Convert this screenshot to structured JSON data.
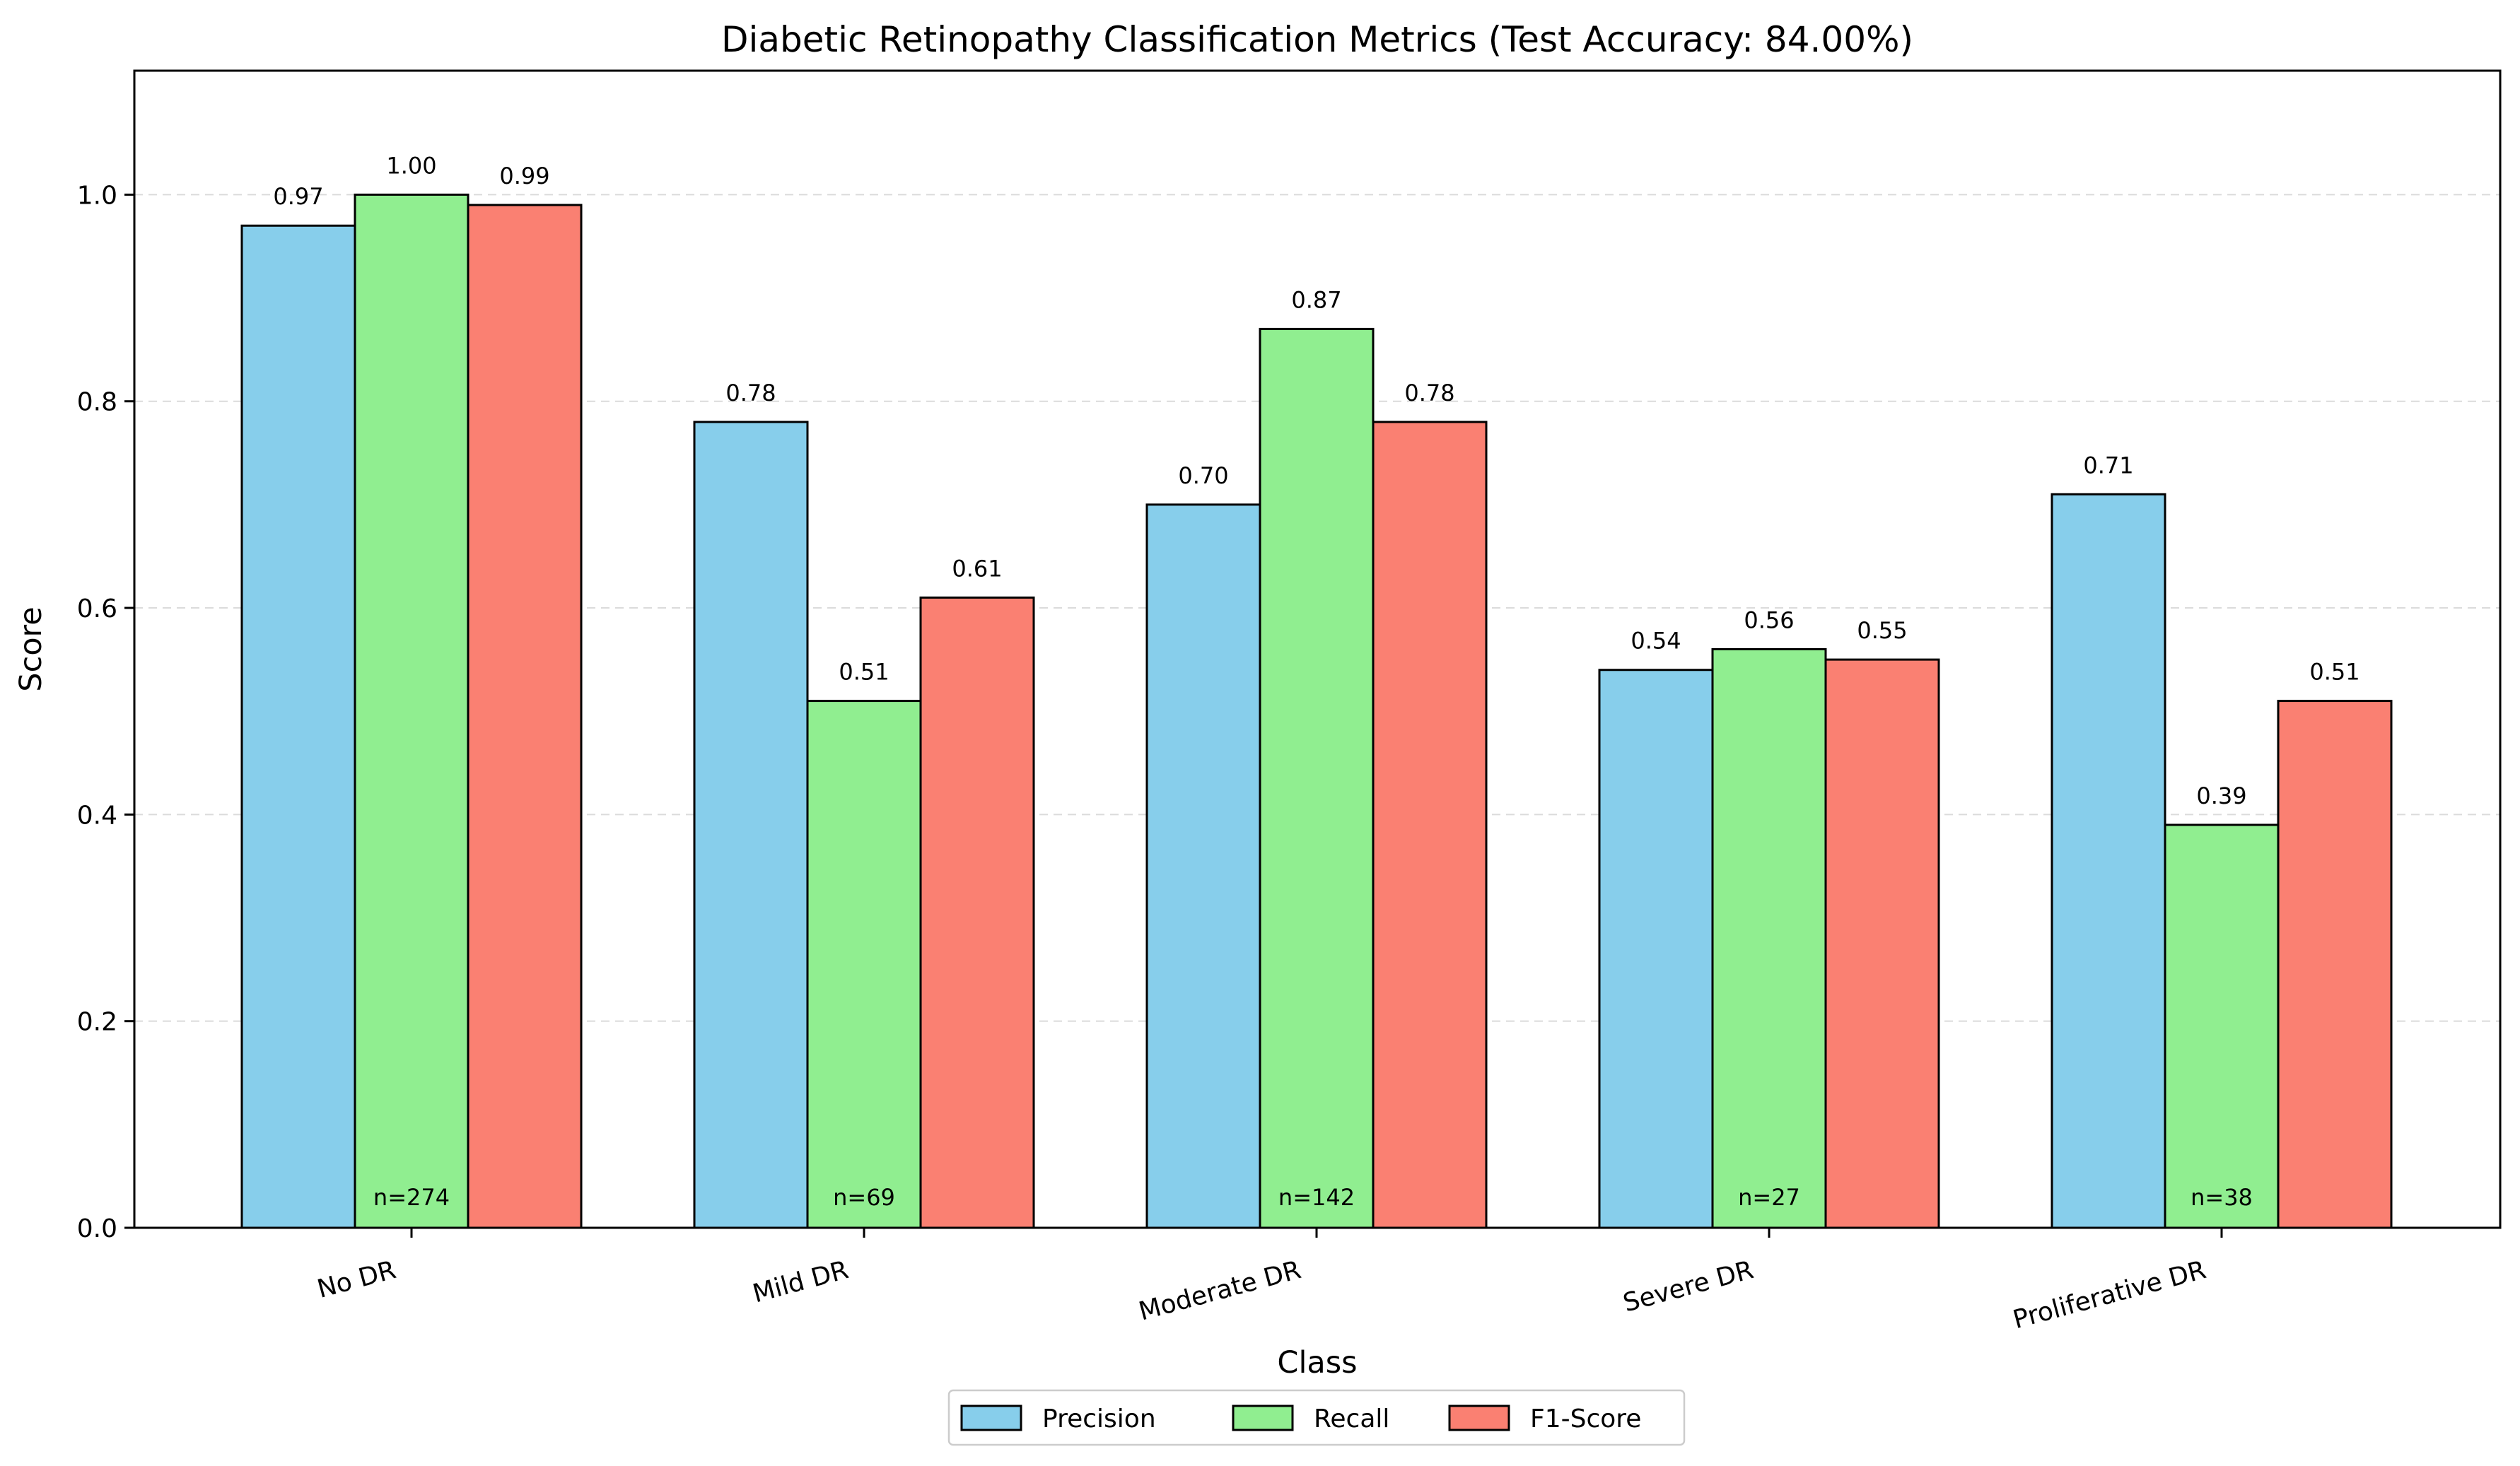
{
  "chart_data": {
    "type": "bar",
    "title": "Diabetic Retinopathy Classification Metrics (Test Accuracy: 84.00%)",
    "xlabel": "Class",
    "ylabel": "Score",
    "ylim": [
      0,
      1.12
    ],
    "yticks": [
      "0.0",
      "0.2",
      "0.4",
      "0.6",
      "0.8",
      "1.0"
    ],
    "grid": "y-dashed",
    "legend_position": "bottom-center",
    "categories": [
      "No DR",
      "Mild DR",
      "Moderate DR",
      "Severe DR",
      "Proliferative DR"
    ],
    "series": [
      {
        "name": "Precision",
        "color": "#87CEEB",
        "values": [
          0.97,
          0.78,
          0.7,
          0.54,
          0.71
        ],
        "labels": [
          "0.97",
          "0.78",
          "0.70",
          "0.54",
          "0.71"
        ]
      },
      {
        "name": "Recall",
        "color": "#90EE90",
        "values": [
          1.0,
          0.51,
          0.87,
          0.56,
          0.39
        ],
        "labels": [
          "1.00",
          "0.51",
          "0.87",
          "0.56",
          "0.39"
        ]
      },
      {
        "name": "F1-Score",
        "color": "#FA8072",
        "values": [
          0.99,
          0.61,
          0.78,
          0.55,
          0.51
        ],
        "labels": [
          "0.99",
          "0.61",
          "0.78",
          "0.55",
          "0.51"
        ]
      }
    ],
    "sample_counts": [
      "n=274",
      "n=69",
      "n=142",
      "n=27",
      "n=38"
    ]
  }
}
